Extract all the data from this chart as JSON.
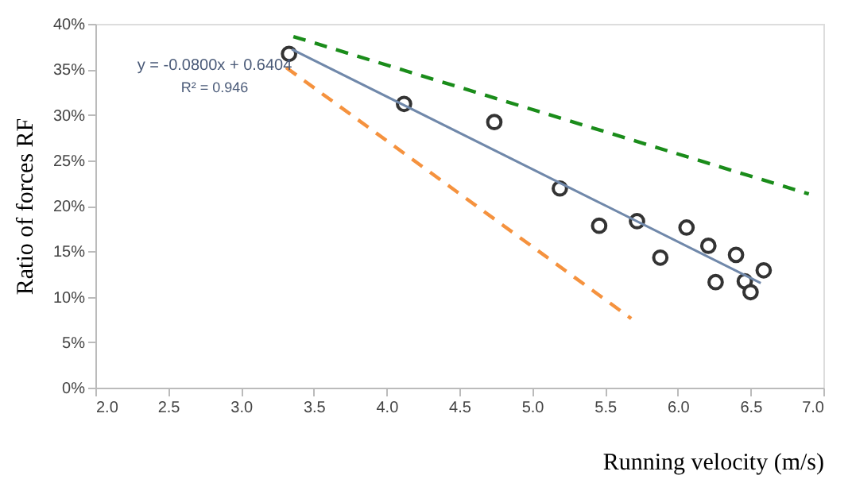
{
  "chart_data": {
    "type": "scatter",
    "xlabel": "Running velocity (m/s)",
    "ylabel": "Ratio of forces RF",
    "xlim": [
      2.0,
      7.0
    ],
    "xticks": [
      {
        "value": 2.0,
        "label": "2.0"
      },
      {
        "value": 2.5,
        "label": "2.5"
      },
      {
        "value": 3.0,
        "label": "3.0"
      },
      {
        "value": 3.5,
        "label": "3.5"
      },
      {
        "value": 4.0,
        "label": "4.0"
      },
      {
        "value": 4.5,
        "label": "4.5"
      },
      {
        "value": 5.0,
        "label": "5.0"
      },
      {
        "value": 5.5,
        "label": "5.5"
      },
      {
        "value": 6.0,
        "label": "6.0"
      },
      {
        "value": 6.5,
        "label": "6.5"
      },
      {
        "value": 7.0,
        "label": "7.0"
      }
    ],
    "ylim": [
      0,
      40
    ],
    "yticks": [
      {
        "value": 0,
        "label": "0%"
      },
      {
        "value": 5,
        "label": "5%"
      },
      {
        "value": 10,
        "label": "10%"
      },
      {
        "value": 15,
        "label": "15%"
      },
      {
        "value": 20,
        "label": "20%"
      },
      {
        "value": 25,
        "label": "25%"
      },
      {
        "value": 30,
        "label": "30%"
      },
      {
        "value": 35,
        "label": "35%"
      },
      {
        "value": 40,
        "label": "40%"
      }
    ],
    "grid": false,
    "annotations": [
      "y = -0.0800x + 0.6404",
      "R² = 0.946"
    ],
    "series": [
      {
        "type": "scatter",
        "marker": "circle",
        "color": "#333333",
        "x": [
          3.33,
          4.12,
          4.74,
          5.19,
          5.46,
          5.72,
          5.88,
          6.06,
          6.21,
          6.26,
          6.4,
          6.46,
          6.5,
          6.59
        ],
        "values": [
          36.7,
          31.2,
          29.2,
          21.9,
          17.8,
          18.3,
          14.3,
          17.6,
          15.6,
          11.6,
          14.6,
          11.7,
          10.5,
          12.9
        ]
      },
      {
        "type": "line",
        "line_style": "solid",
        "color": "#7088aa",
        "x": [
          3.35,
          6.57
        ],
        "values": [
          37.2,
          11.5
        ]
      },
      {
        "type": "line",
        "line_style": "dashed",
        "color": "#1a8c1a",
        "x": [
          3.36,
          6.9
        ],
        "values": [
          38.6,
          21.3
        ]
      },
      {
        "type": "line",
        "line_style": "dashed",
        "color": "#f5923e",
        "x": [
          3.31,
          5.68
        ],
        "values": [
          35.2,
          7.6
        ]
      }
    ]
  }
}
